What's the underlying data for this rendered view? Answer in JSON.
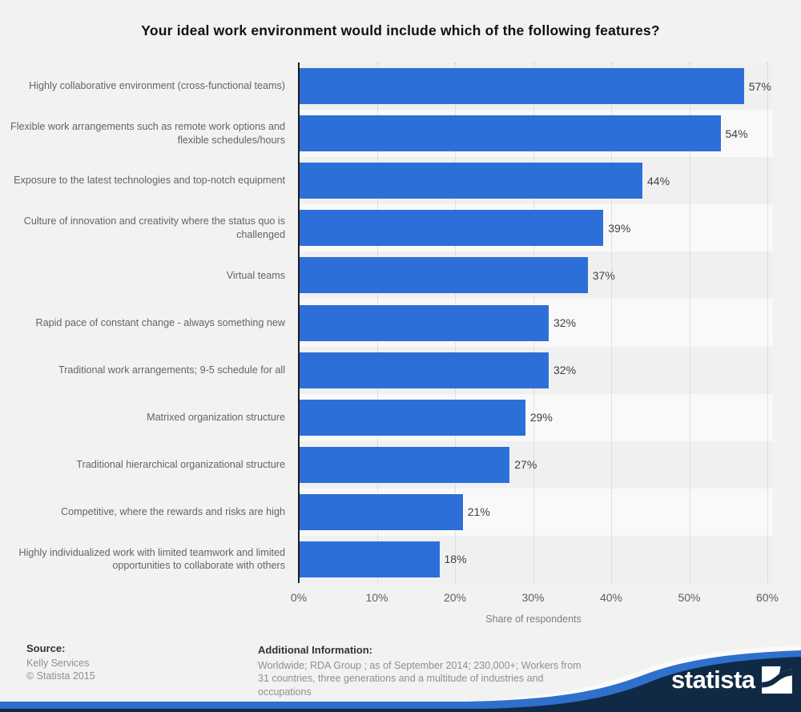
{
  "title": "Your ideal work environment would include which of the following features?",
  "chart_data": {
    "type": "bar",
    "orientation": "horizontal",
    "title": "Your ideal work environment would include which of the following features?",
    "categories": [
      "Highly collaborative environment (cross-functional teams)",
      "Flexible work arrangements such as remote work options and flexible schedules/hours",
      "Exposure to the latest technologies and top-notch equipment",
      "Culture of innovation and creativity where the status quo is challenged",
      "Virtual teams",
      "Rapid pace of constant change - always something new",
      "Traditional work arrangements; 9-5 schedule for all",
      "Matrixed organization structure",
      "Traditional hierarchical organizational structure",
      "Competitive, where the rewards and risks are high",
      "Highly individualized work with limited teamwork and limited opportunities to collaborate with others"
    ],
    "values": [
      57,
      54,
      44,
      39,
      37,
      32,
      32,
      29,
      27,
      21,
      18
    ],
    "value_suffix": "%",
    "xlabel": "Share of respondents",
    "xlim": [
      0,
      60
    ],
    "xticks": [
      "0%",
      "10%",
      "20%",
      "30%",
      "40%",
      "50%",
      "60%"
    ],
    "bar_color": "#2d6fd8",
    "grid": "vertical-dotted",
    "legend": "none"
  },
  "footer": {
    "source_label": "Source:",
    "source_lines": [
      "Kelly Services",
      "© Statista 2015"
    ],
    "additional_label": "Additional Information:",
    "additional_text": "Worldwide; RDA Group ; as of September 2014; 230,000+; Workers from 31 countries, three generations and a multitude of industries and occupations",
    "brand": "statista",
    "brand_navy": "#102a45",
    "brand_blue": "#2e70cc"
  }
}
